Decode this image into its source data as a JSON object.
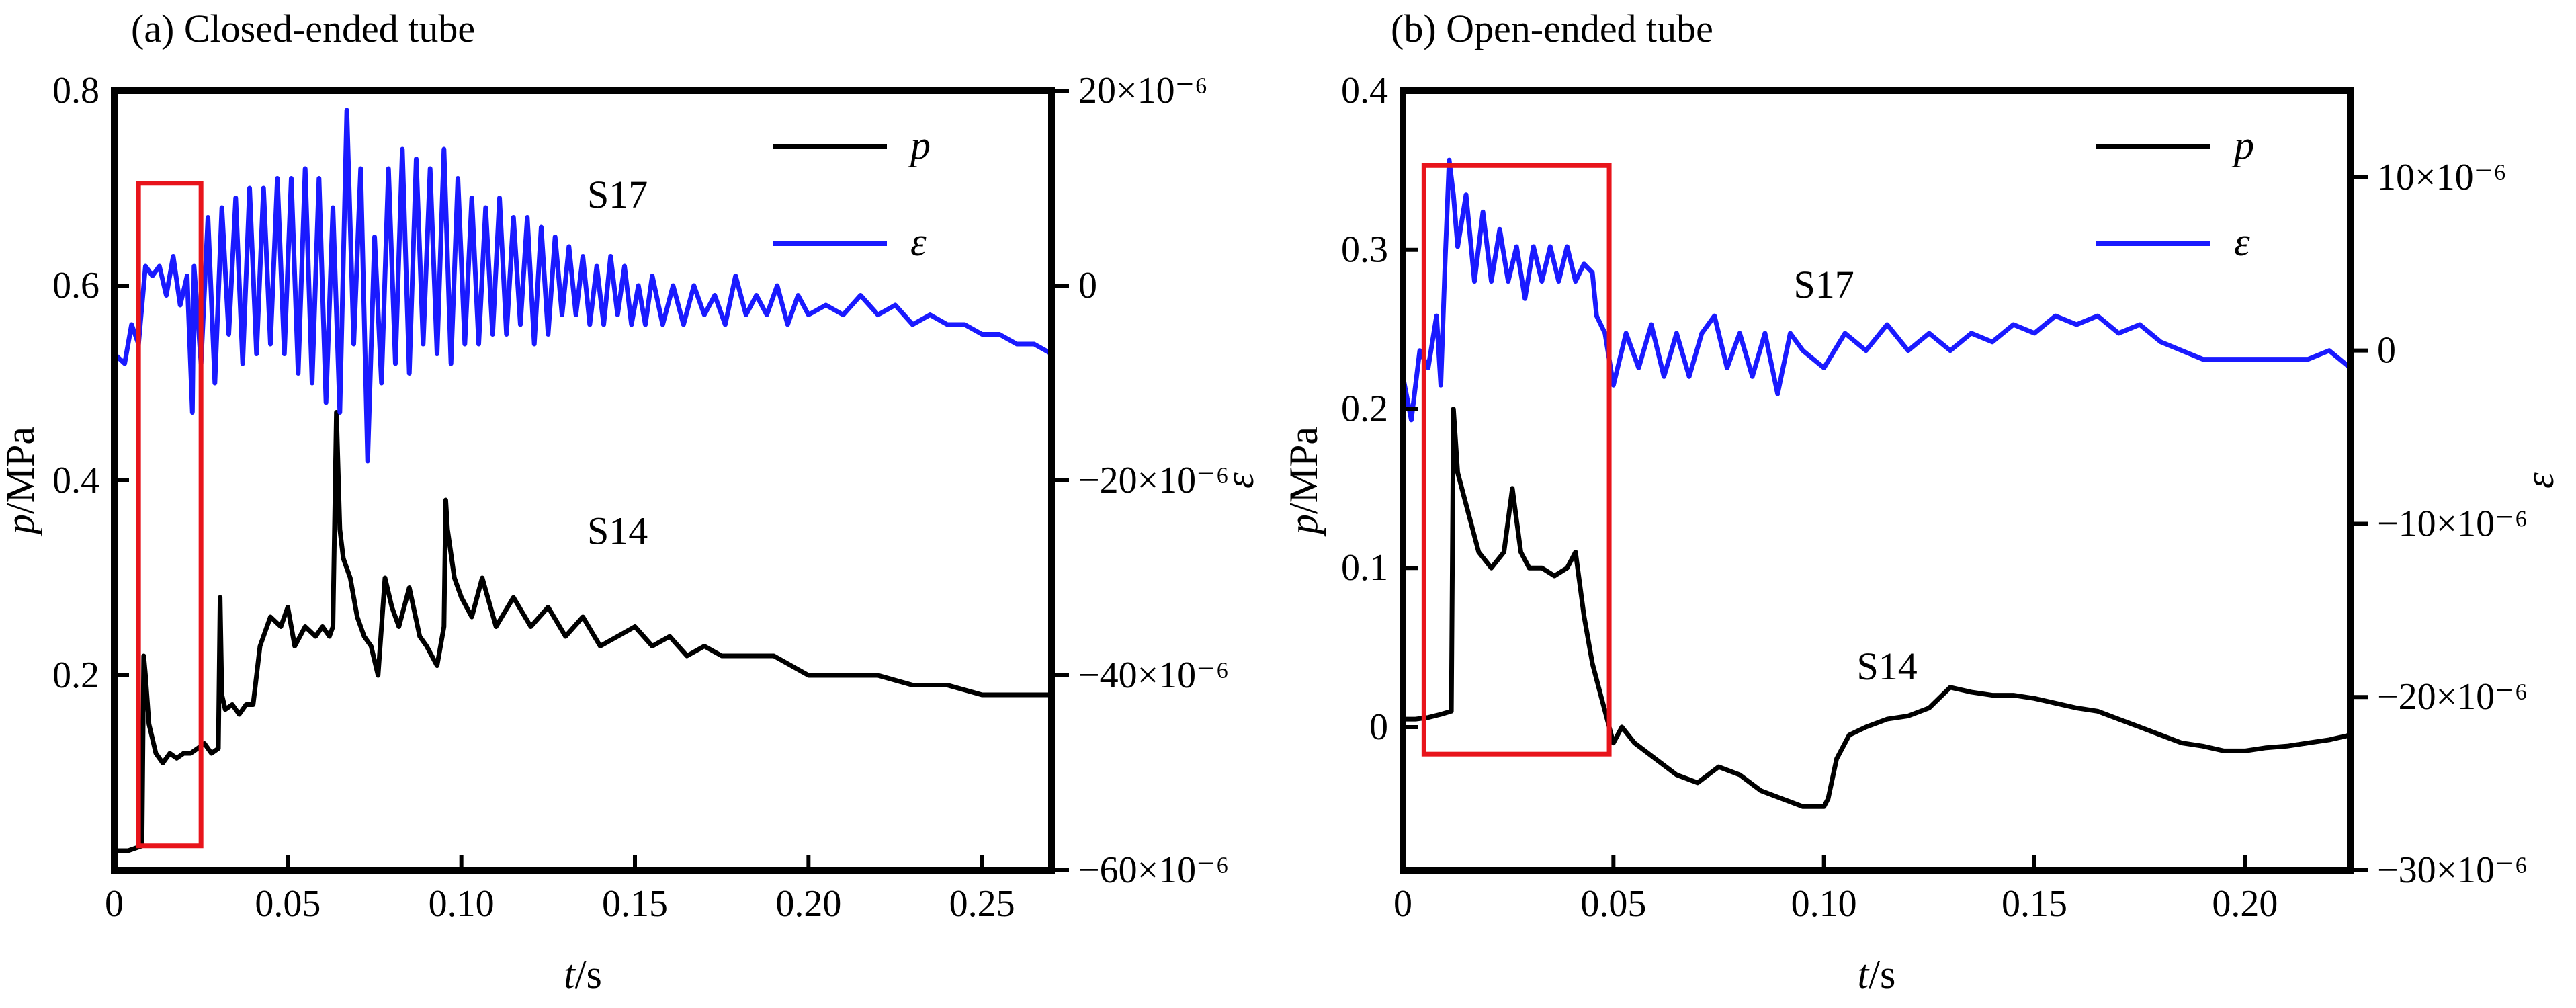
{
  "chart_data": [
    {
      "type": "line",
      "title": "(a) Closed-ended tube",
      "xlabel_var": "t",
      "xlabel_unit": "/s",
      "ylabel_var": "p",
      "ylabel_unit": "/MPa",
      "y2label": "ε",
      "xlim": [
        0,
        0.27
      ],
      "ylim": [
        0,
        0.8
      ],
      "y2lim": [
        -6e-05,
        2e-05
      ],
      "x_ticks": [
        0,
        0.05,
        0.1,
        0.15,
        0.2,
        0.25
      ],
      "x_tick_labels": [
        "0",
        "0.05",
        "0.10",
        "0.15",
        "0.20",
        "0.25"
      ],
      "y_ticks": [
        0.2,
        0.4,
        0.6,
        0.8
      ],
      "y_tick_labels": [
        "0.2",
        "0.4",
        "0.6",
        "0.8"
      ],
      "y2_ticks": [
        -6e-05,
        -4e-05,
        -2e-05,
        0,
        2e-05
      ],
      "y2_tick_labels": [
        "−60×10⁻⁶",
        "−40×10⁻⁶",
        "−20×10⁻⁶",
        "0",
        "20×10⁻⁶"
      ],
      "legend_position": "top-right",
      "series": [
        {
          "name": "p",
          "axis": "left",
          "color": "#000000",
          "x": [
            0,
            0.004,
            0.008,
            0.0085,
            0.009,
            0.01,
            0.012,
            0.014,
            0.016,
            0.018,
            0.02,
            0.022,
            0.024,
            0.026,
            0.028,
            0.03,
            0.0305,
            0.031,
            0.032,
            0.034,
            0.036,
            0.038,
            0.04,
            0.042,
            0.045,
            0.048,
            0.05,
            0.052,
            0.055,
            0.058,
            0.06,
            0.062,
            0.063,
            0.064,
            0.065,
            0.066,
            0.068,
            0.07,
            0.072,
            0.074,
            0.076,
            0.078,
            0.08,
            0.082,
            0.085,
            0.088,
            0.09,
            0.093,
            0.095,
            0.0955,
            0.096,
            0.098,
            0.1,
            0.103,
            0.106,
            0.11,
            0.115,
            0.12,
            0.125,
            0.13,
            0.135,
            0.14,
            0.145,
            0.15,
            0.155,
            0.16,
            0.165,
            0.17,
            0.175,
            0.18,
            0.19,
            0.2,
            0.21,
            0.22,
            0.23,
            0.24,
            0.25,
            0.26,
            0.27
          ],
          "y": [
            0.02,
            0.02,
            0.025,
            0.22,
            0.2,
            0.15,
            0.12,
            0.11,
            0.12,
            0.115,
            0.12,
            0.12,
            0.125,
            0.13,
            0.12,
            0.125,
            0.28,
            0.18,
            0.165,
            0.17,
            0.16,
            0.17,
            0.17,
            0.23,
            0.26,
            0.25,
            0.27,
            0.23,
            0.25,
            0.24,
            0.25,
            0.24,
            0.25,
            0.47,
            0.35,
            0.32,
            0.3,
            0.26,
            0.24,
            0.23,
            0.2,
            0.3,
            0.27,
            0.25,
            0.29,
            0.24,
            0.23,
            0.21,
            0.25,
            0.38,
            0.35,
            0.3,
            0.28,
            0.26,
            0.3,
            0.25,
            0.28,
            0.25,
            0.27,
            0.24,
            0.26,
            0.23,
            0.24,
            0.25,
            0.23,
            0.24,
            0.22,
            0.23,
            0.22,
            0.22,
            0.22,
            0.2,
            0.2,
            0.2,
            0.19,
            0.19,
            0.18,
            0.18,
            0.18
          ]
        },
        {
          "name": "ε",
          "axis": "right",
          "color": "#1a1aff",
          "x": [
            0,
            0.003,
            0.005,
            0.007,
            0.009,
            0.011,
            0.013,
            0.015,
            0.017,
            0.019,
            0.021,
            0.0225,
            0.023,
            0.025,
            0.027,
            0.029,
            0.031,
            0.033,
            0.035,
            0.037,
            0.039,
            0.041,
            0.043,
            0.045,
            0.047,
            0.049,
            0.051,
            0.053,
            0.055,
            0.057,
            0.059,
            0.061,
            0.063,
            0.065,
            0.067,
            0.069,
            0.071,
            0.073,
            0.075,
            0.077,
            0.079,
            0.081,
            0.083,
            0.085,
            0.087,
            0.089,
            0.091,
            0.093,
            0.095,
            0.097,
            0.099,
            0.101,
            0.103,
            0.105,
            0.107,
            0.109,
            0.111,
            0.113,
            0.115,
            0.117,
            0.119,
            0.121,
            0.123,
            0.125,
            0.127,
            0.129,
            0.131,
            0.133,
            0.135,
            0.137,
            0.139,
            0.141,
            0.143,
            0.145,
            0.147,
            0.149,
            0.151,
            0.153,
            0.155,
            0.158,
            0.161,
            0.164,
            0.167,
            0.17,
            0.173,
            0.176,
            0.179,
            0.182,
            0.185,
            0.188,
            0.191,
            0.194,
            0.197,
            0.2,
            0.205,
            0.21,
            0.215,
            0.22,
            0.225,
            0.23,
            0.235,
            0.24,
            0.245,
            0.25,
            0.255,
            0.26,
            0.265,
            0.27
          ],
          "y": [
            -7e-06,
            -8e-06,
            -4e-06,
            -6e-06,
            2e-06,
            1e-06,
            2e-06,
            -1e-06,
            3e-06,
            -2e-06,
            1e-06,
            -1.3e-05,
            2e-06,
            -8e-06,
            7e-06,
            -1e-05,
            8e-06,
            -5e-06,
            9e-06,
            -8e-06,
            1e-05,
            -7e-06,
            1e-05,
            -6e-06,
            1.1e-05,
            -7e-06,
            1.1e-05,
            -9e-06,
            1.2e-05,
            -1e-05,
            1.1e-05,
            -1.2e-05,
            8e-06,
            -1.3e-05,
            1.8e-05,
            -6e-06,
            1.2e-05,
            -1.8e-05,
            5e-06,
            -1e-05,
            1.2e-05,
            -8e-06,
            1.4e-05,
            -9e-06,
            1.3e-05,
            -6e-06,
            1.2e-05,
            -7e-06,
            1.4e-05,
            -8e-06,
            1.1e-05,
            -6e-06,
            9e-06,
            -6e-06,
            8e-06,
            -5e-06,
            9e-06,
            -5e-06,
            7e-06,
            -4e-06,
            7e-06,
            -6e-06,
            6e-06,
            -5e-06,
            5e-06,
            -3e-06,
            4e-06,
            -3e-06,
            3e-06,
            -4e-06,
            2e-06,
            -4e-06,
            3e-06,
            -3e-06,
            2e-06,
            -4e-06,
            0.0,
            -4e-06,
            1e-06,
            -4e-06,
            0.0,
            -4e-06,
            0.0,
            -3e-06,
            -1e-06,
            -4e-06,
            1e-06,
            -3e-06,
            -1e-06,
            -3e-06,
            0.0,
            -4e-06,
            -1e-06,
            -3e-06,
            -2e-06,
            -3e-06,
            -1e-06,
            -3e-06,
            -2e-06,
            -4e-06,
            -3e-06,
            -4e-06,
            -4e-06,
            -5e-06,
            -5e-06,
            -6e-06,
            -6e-06,
            -7e-06
          ]
        }
      ],
      "annotations": [
        {
          "text": "S17",
          "x": 0.145,
          "y": 0.68
        },
        {
          "text": "S14",
          "x": 0.145,
          "y": 0.335
        }
      ],
      "highlight_box": {
        "x0": 0.007,
        "x1": 0.025,
        "y0": 0.025,
        "y1": 0.705,
        "color": "#e8141b"
      }
    },
    {
      "type": "line",
      "title": "(b) Open-ended tube",
      "xlabel_var": "t",
      "xlabel_unit": "/s",
      "ylabel_var": "p",
      "ylabel_unit": "/MPa",
      "y2label": "ε",
      "xlim": [
        0,
        0.225
      ],
      "ylim": [
        -0.09,
        0.4
      ],
      "y2lim": [
        -3e-05,
        1.5e-05
      ],
      "x_ticks": [
        0,
        0.05,
        0.1,
        0.15,
        0.2
      ],
      "x_tick_labels": [
        "0",
        "0.05",
        "0.10",
        "0.15",
        "0.20"
      ],
      "y_ticks": [
        0,
        0.1,
        0.2,
        0.3,
        0.4
      ],
      "y_tick_labels": [
        "0",
        "0.1",
        "0.2",
        "0.3",
        "0.4"
      ],
      "y2_ticks": [
        -3e-05,
        -2e-05,
        -1e-05,
        0,
        1e-05
      ],
      "y2_tick_labels": [
        "−30×10⁻⁶",
        "−20×10⁻⁶",
        "−10×10⁻⁶",
        "0",
        "10×10⁻⁶"
      ],
      "legend_position": "top-right",
      "series": [
        {
          "name": "p",
          "axis": "left",
          "color": "#000000",
          "x": [
            0,
            0.003,
            0.006,
            0.009,
            0.0115,
            0.012,
            0.013,
            0.015,
            0.018,
            0.021,
            0.024,
            0.026,
            0.028,
            0.03,
            0.033,
            0.036,
            0.039,
            0.041,
            0.043,
            0.045,
            0.047,
            0.049,
            0.05,
            0.052,
            0.055,
            0.06,
            0.065,
            0.07,
            0.075,
            0.08,
            0.085,
            0.09,
            0.095,
            0.1,
            0.101,
            0.103,
            0.106,
            0.11,
            0.115,
            0.12,
            0.125,
            0.13,
            0.135,
            0.14,
            0.145,
            0.15,
            0.155,
            0.16,
            0.165,
            0.17,
            0.175,
            0.18,
            0.185,
            0.19,
            0.195,
            0.2,
            0.205,
            0.21,
            0.215,
            0.22,
            0.225
          ],
          "y": [
            0.005,
            0.005,
            0.006,
            0.008,
            0.01,
            0.2,
            0.16,
            0.14,
            0.11,
            0.1,
            0.11,
            0.15,
            0.11,
            0.1,
            0.1,
            0.095,
            0.1,
            0.11,
            0.07,
            0.04,
            0.02,
            0.0,
            -0.01,
            0.0,
            -0.01,
            -0.02,
            -0.03,
            -0.035,
            -0.025,
            -0.03,
            -0.04,
            -0.045,
            -0.05,
            -0.05,
            -0.045,
            -0.02,
            -0.005,
            0.0,
            0.005,
            0.007,
            0.012,
            0.025,
            0.022,
            0.02,
            0.02,
            0.018,
            0.015,
            0.012,
            0.01,
            0.005,
            0.0,
            -0.005,
            -0.01,
            -0.012,
            -0.015,
            -0.015,
            -0.013,
            -0.012,
            -0.01,
            -0.008,
            -0.005
          ]
        },
        {
          "name": "ε",
          "axis": "right",
          "color": "#1a1aff",
          "x": [
            0,
            0.002,
            0.004,
            0.006,
            0.008,
            0.009,
            0.01,
            0.011,
            0.012,
            0.013,
            0.015,
            0.017,
            0.019,
            0.021,
            0.023,
            0.025,
            0.027,
            0.029,
            0.031,
            0.033,
            0.035,
            0.037,
            0.039,
            0.041,
            0.043,
            0.045,
            0.046,
            0.048,
            0.05,
            0.053,
            0.056,
            0.059,
            0.062,
            0.065,
            0.068,
            0.071,
            0.074,
            0.077,
            0.08,
            0.083,
            0.086,
            0.089,
            0.092,
            0.095,
            0.1,
            0.105,
            0.11,
            0.115,
            0.12,
            0.125,
            0.13,
            0.135,
            0.14,
            0.145,
            0.15,
            0.155,
            0.16,
            0.165,
            0.17,
            0.175,
            0.18,
            0.185,
            0.19,
            0.195,
            0.2,
            0.205,
            0.21,
            0.215,
            0.22,
            0.225
          ],
          "y": [
            -1.5e-06,
            -4e-06,
            0.0,
            -1e-06,
            2e-06,
            -2e-06,
            5e-06,
            1.1e-05,
            9e-06,
            6e-06,
            9e-06,
            4e-06,
            8e-06,
            4e-06,
            7e-06,
            4e-06,
            6e-06,
            3e-06,
            6e-06,
            4e-06,
            6e-06,
            4e-06,
            6e-06,
            4e-06,
            5e-06,
            4.5e-06,
            2e-06,
            1e-06,
            -2e-06,
            1e-06,
            -1e-06,
            1.5e-06,
            -1.5e-06,
            1e-06,
            -1.5e-06,
            1e-06,
            2e-06,
            -1e-06,
            1e-06,
            -1.5e-06,
            1e-06,
            -2.5e-06,
            1e-06,
            0.0,
            -1e-06,
            1e-06,
            0.0,
            1.5e-06,
            0.0,
            1e-06,
            0.0,
            1e-06,
            5e-07,
            1.5e-06,
            1e-06,
            2e-06,
            1.5e-06,
            2e-06,
            1e-06,
            1.5e-06,
            5e-07,
            0.0,
            -5e-07,
            -5e-07,
            -5e-07,
            -5e-07,
            -5e-07,
            -5e-07,
            0.0,
            -1e-06
          ]
        }
      ],
      "annotations": [
        {
          "text": "S17",
          "x": 0.1,
          "y": 0.27
        },
        {
          "text": "S14",
          "x": 0.115,
          "y": 0.03
        }
      ],
      "highlight_box": {
        "x0": 0.005,
        "x1": 0.049,
        "y0": -0.017,
        "y1": 0.353,
        "color": "#e8141b"
      }
    }
  ]
}
